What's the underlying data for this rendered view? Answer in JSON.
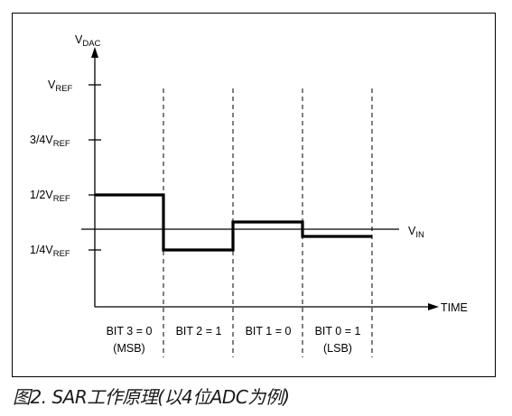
{
  "diagram": {
    "y_axis_label": "V",
    "y_axis_label_sub": "DAC",
    "x_axis_label": "TIME",
    "input_label": "V",
    "input_label_sub": "IN",
    "y_ticks": [
      {
        "text": "V",
        "sub": "REF"
      },
      {
        "text": "3/4V",
        "sub": "REF"
      },
      {
        "text": "1/2V",
        "sub": "REF"
      },
      {
        "text": "1/4V",
        "sub": "REF"
      }
    ],
    "bit_periods": [
      {
        "line1": "BIT 3 = 0",
        "line2": "(MSB)"
      },
      {
        "line1": "BIT 2 = 1",
        "line2": ""
      },
      {
        "line1": "BIT 1 = 0",
        "line2": ""
      },
      {
        "line1": "BIT 0 = 1",
        "line2": "(LSB)"
      }
    ]
  },
  "caption": "图2. SAR工作原理(以4位ADC为例)"
}
